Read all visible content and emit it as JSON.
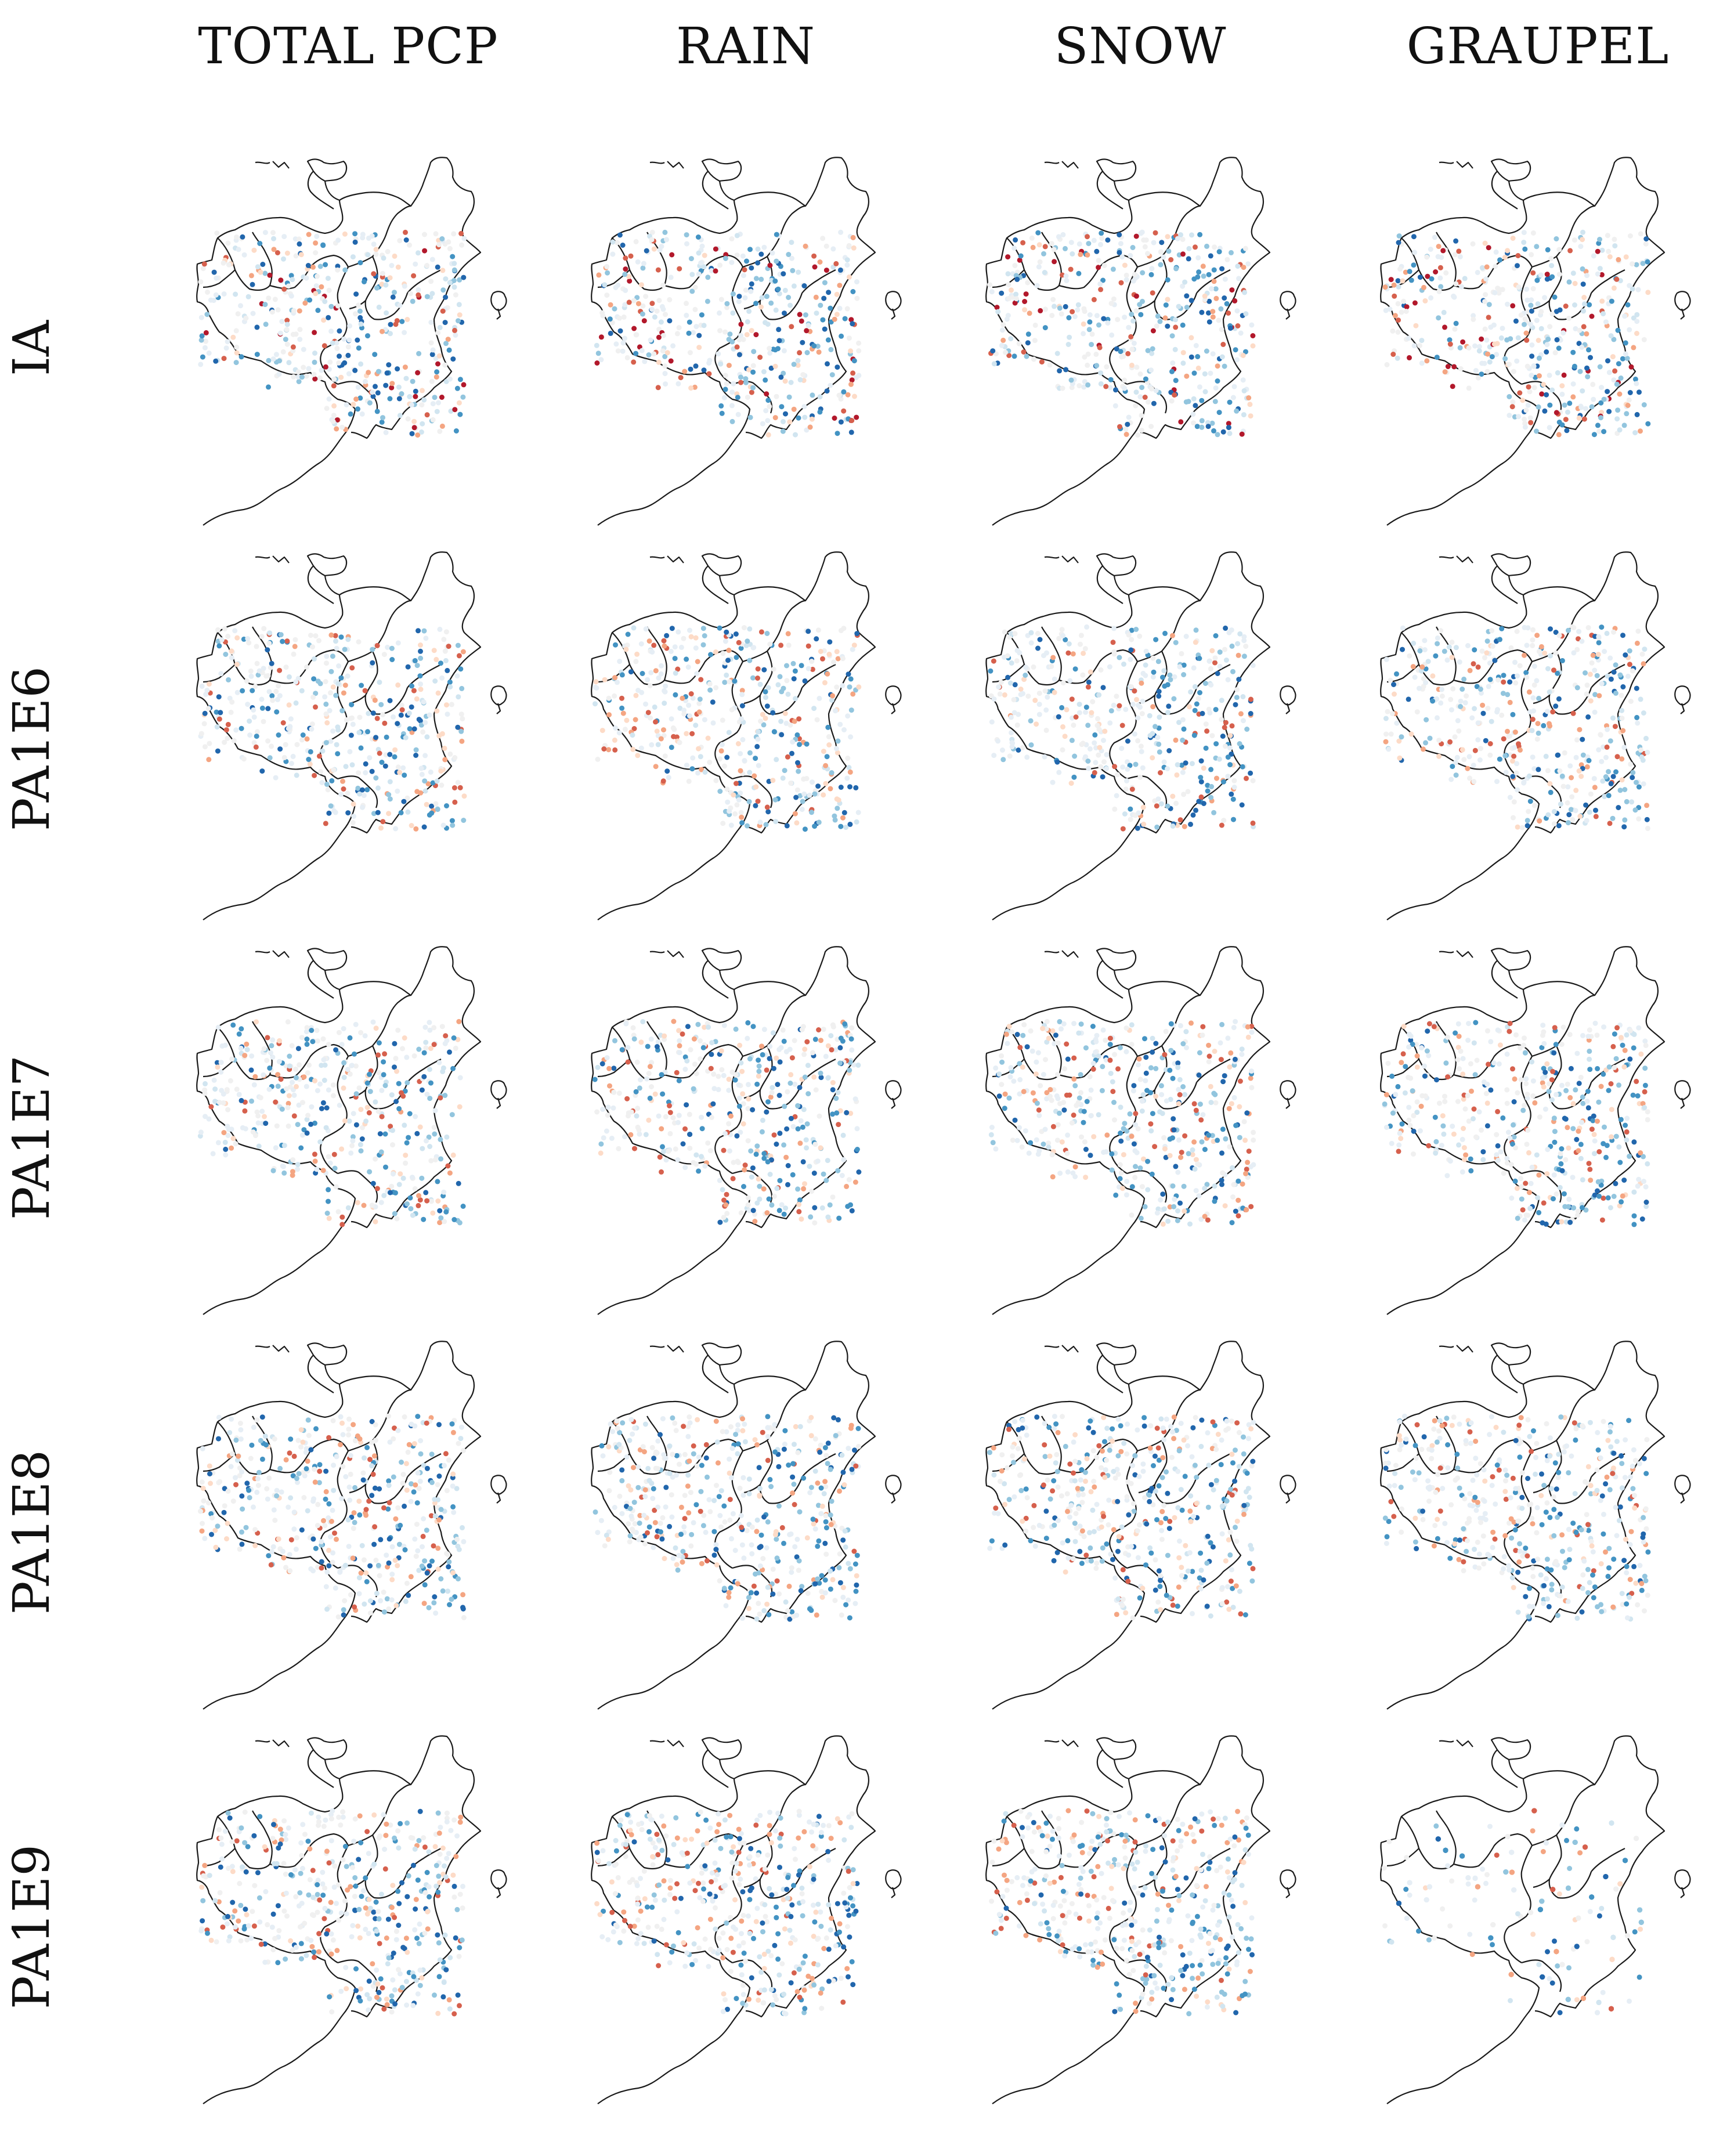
{
  "columns": [
    "TOTAL PCP",
    "RAIN",
    "SNOW",
    "GRAUPEL"
  ],
  "rows": [
    "IA",
    "PA1E6",
    "PA1E7",
    "PA1E8",
    "PA1E9"
  ],
  "colors": {
    "blue": "#2166ac",
    "red": "#b2182b",
    "border": "#1a1a1a"
  },
  "scatter_palette": "RdBu_r"
}
